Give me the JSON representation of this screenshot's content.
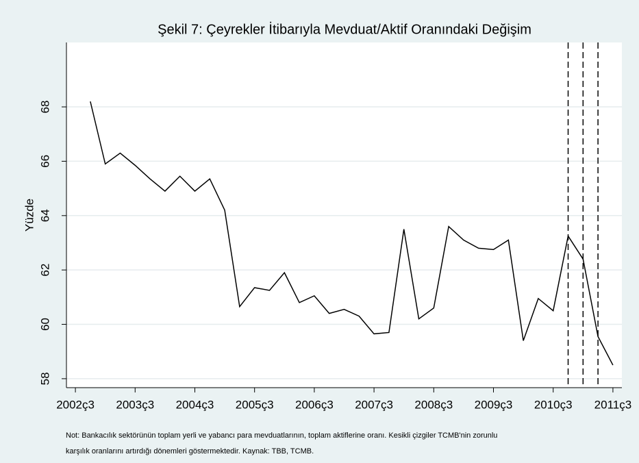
{
  "chart_data": {
    "type": "line",
    "title": "Şekil 7: Çeyrekler İtibarıyla Mevduat/Aktif Oranındaki Değişim",
    "y_label": "Yüzde",
    "note": [
      "Not: Bankacılık sektörünün toplam yerli ve yabancı para mevduatlarının, toplam aktiflerine oranı. Kesikli çizgiler TCMB'nin zorunlu",
      "karşılık oranlarını artırdığı dönemleri göstermektedir. Kaynak: TBB, TCMB."
    ],
    "x": [
      2002.75,
      2003.0,
      2003.25,
      2003.5,
      2003.75,
      2004.0,
      2004.25,
      2004.5,
      2004.75,
      2005.0,
      2005.25,
      2005.5,
      2005.75,
      2006.0,
      2006.25,
      2006.5,
      2006.75,
      2007.0,
      2007.25,
      2007.5,
      2007.75,
      2008.0,
      2008.25,
      2008.5,
      2008.75,
      2009.0,
      2009.25,
      2009.5,
      2009.75,
      2010.0,
      2010.25,
      2010.5,
      2010.75,
      2011.0,
      2011.25,
      2011.5
    ],
    "series": [
      {
        "name": "Mevduat/Aktif",
        "color": "#000000",
        "values": [
          68.2,
          65.9,
          66.3,
          65.85,
          65.35,
          64.9,
          65.45,
          64.9,
          65.35,
          64.2,
          60.65,
          61.35,
          61.25,
          61.9,
          60.8,
          61.05,
          60.4,
          60.55,
          60.3,
          59.65,
          59.7,
          63.5,
          60.2,
          60.6,
          63.6,
          63.1,
          62.8,
          62.75,
          63.1,
          59.4,
          60.95,
          60.5,
          63.25,
          62.4,
          59.55,
          58.5
        ]
      }
    ],
    "vlines": [
      2010.75,
      2011.0,
      2011.25
    ],
    "xlim": [
      2002.35,
      2011.65
    ],
    "xticks": [
      {
        "value": 2002.5,
        "label": "2002ç3"
      },
      {
        "value": 2003.5,
        "label": "2003ç3"
      },
      {
        "value": 2004.5,
        "label": "2004ç3"
      },
      {
        "value": 2005.5,
        "label": "2005ç3"
      },
      {
        "value": 2006.5,
        "label": "2006ç3"
      },
      {
        "value": 2007.5,
        "label": "2007ç3"
      },
      {
        "value": 2008.5,
        "label": "2008ç3"
      },
      {
        "value": 2009.5,
        "label": "2009ç3"
      },
      {
        "value": 2010.5,
        "label": "2010ç3"
      },
      {
        "value": 2011.5,
        "label": "2011ç3"
      }
    ],
    "ylim": [
      57.67,
      70.37
    ],
    "yticks": [
      58,
      60,
      62,
      64,
      66,
      68
    ],
    "grid": true
  }
}
